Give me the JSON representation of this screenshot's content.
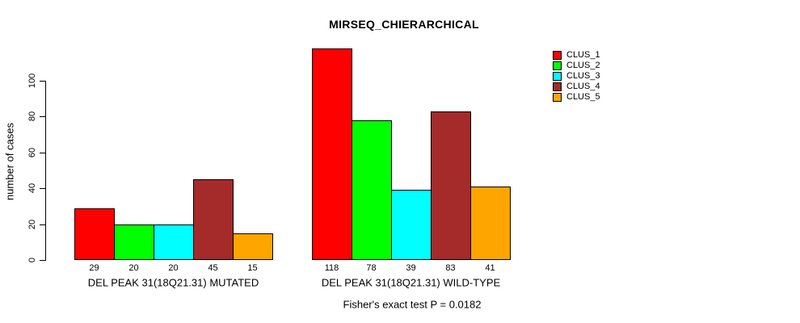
{
  "title": "MIRSEQ_CHIERARCHICAL",
  "footer": "Fisher's exact test P = 0.0182",
  "chart_data": {
    "type": "bar",
    "title": "MIRSEQ_CHIERARCHICAL",
    "ylabel": "number of cases",
    "xlabel": "",
    "yticks": [
      0,
      20,
      40,
      60,
      80,
      100
    ],
    "ylim": [
      0,
      118
    ],
    "grid": false,
    "legend_position": "right",
    "categories": [
      "DEL PEAK 31(18Q21.31) MUTATED",
      "DEL PEAK 31(18Q21.31) WILD-TYPE"
    ],
    "series": [
      {
        "name": "CLUS_1",
        "color": "#FF0000",
        "values": [
          29,
          118
        ]
      },
      {
        "name": "CLUS_2",
        "color": "#00FF00",
        "values": [
          20,
          78
        ]
      },
      {
        "name": "CLUS_3",
        "color": "#00FFFF",
        "values": [
          20,
          39
        ]
      },
      {
        "name": "CLUS_4",
        "color": "#A52A2A",
        "values": [
          45,
          83
        ]
      },
      {
        "name": "CLUS_5",
        "color": "#FFA500",
        "values": [
          15,
          41
        ]
      }
    ],
    "bar_value_labels": [
      [
        29,
        20,
        20,
        45,
        15
      ],
      [
        118,
        78,
        39,
        83,
        41
      ]
    ],
    "annotation": "Fisher's exact test P = 0.0182"
  }
}
